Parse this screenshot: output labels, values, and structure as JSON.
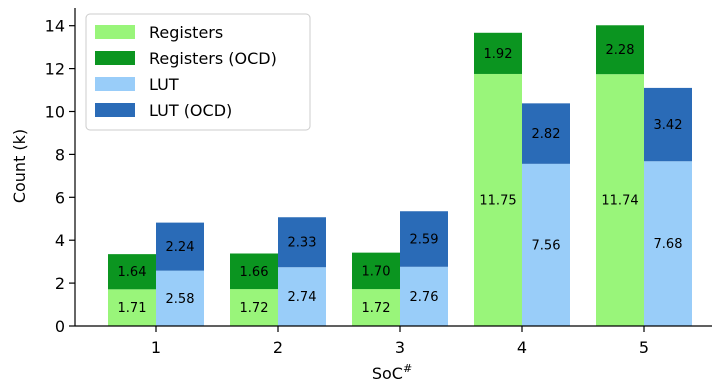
{
  "chart_data": {
    "type": "bar",
    "stacked": true,
    "grouped": true,
    "categories": [
      "1",
      "2",
      "3",
      "4",
      "5"
    ],
    "xlabel": "SoC",
    "xlabel_sup": "#",
    "ylabel": "Count (k)",
    "ylim": [
      0,
      14.5
    ],
    "yticks": [
      "0",
      "2",
      "4",
      "6",
      "8",
      "10",
      "12",
      "14"
    ],
    "grid": false,
    "legend_position": "top-left",
    "groups": [
      {
        "name": "registers",
        "segments": [
          {
            "name": "Registers",
            "color": "#99f57a",
            "values": [
              1.71,
              1.72,
              1.72,
              11.75,
              11.74
            ],
            "labels": [
              "1.71",
              "1.72",
              "1.72",
              "11.75",
              "11.74"
            ]
          },
          {
            "name": "Registers (OCD)",
            "color": "#0b9520",
            "values": [
              1.64,
              1.66,
              1.7,
              1.92,
              2.28
            ],
            "labels": [
              "1.64",
              "1.66",
              "1.70",
              "1.92",
              "2.28"
            ]
          }
        ]
      },
      {
        "name": "lut",
        "segments": [
          {
            "name": "LUT",
            "color": "#99cdf9",
            "values": [
              2.58,
              2.74,
              2.76,
              7.56,
              7.68
            ],
            "labels": [
              "2.58",
              "2.74",
              "2.76",
              "7.56",
              "7.68"
            ]
          },
          {
            "name": "LUT (OCD)",
            "color": "#2a6bb7",
            "values": [
              2.24,
              2.33,
              2.59,
              2.82,
              3.42
            ],
            "labels": [
              "2.24",
              "2.33",
              "2.59",
              "2.82",
              "3.42"
            ]
          }
        ]
      }
    ],
    "legend": [
      {
        "label": "Registers",
        "color": "#99f57a"
      },
      {
        "label": "Registers (OCD)",
        "color": "#0b9520"
      },
      {
        "label": "LUT",
        "color": "#99cdf9"
      },
      {
        "label": "LUT (OCD)",
        "color": "#2a6bb7"
      }
    ]
  }
}
